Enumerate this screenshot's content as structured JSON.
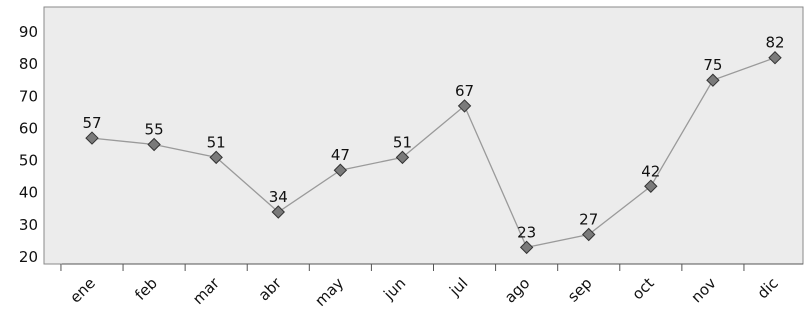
{
  "chart_data": {
    "type": "line",
    "categories": [
      "ene",
      "feb",
      "mar",
      "abr",
      "may",
      "jun",
      "jul",
      "ago",
      "sep",
      "oct",
      "nov",
      "dic"
    ],
    "series": [
      {
        "values": [
          57,
          55,
          51,
          34,
          47,
          51,
          67,
          23,
          27,
          42,
          75,
          82
        ]
      }
    ],
    "data_labels": [
      "57",
      "55",
      "51",
      "34",
      "47",
      "51",
      "67",
      "23",
      "27",
      "42",
      "75",
      "82"
    ],
    "ylim": [
      20,
      90
    ],
    "yticks": [
      "20",
      "30",
      "40",
      "50",
      "60",
      "70",
      "80",
      "90"
    ],
    "grid": false,
    "marker": "diamond",
    "colors": {
      "plot_background": "#ececec",
      "line": "#9a9a9a",
      "marker_fill": "#7a7a7a",
      "marker_stroke": "#333333",
      "axis": "#555555"
    }
  }
}
